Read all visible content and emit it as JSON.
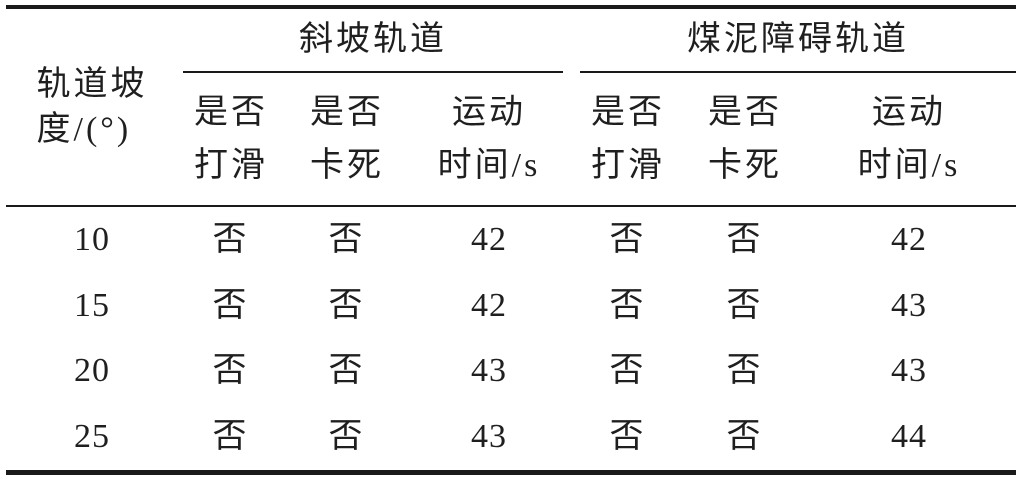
{
  "table": {
    "stub_header": {
      "line1": "轨道坡",
      "line2": "度/(°)"
    },
    "groups": [
      {
        "title": "斜坡轨道",
        "columns": [
          {
            "line1": "是否",
            "line2": "打滑"
          },
          {
            "line1": "是否",
            "line2": "卡死"
          },
          {
            "line1": "运动",
            "line2": "时间/s"
          }
        ]
      },
      {
        "title": "煤泥障碍轨道",
        "columns": [
          {
            "line1": "是否",
            "line2": "打滑"
          },
          {
            "line1": "是否",
            "line2": "卡死"
          },
          {
            "line1": "运动",
            "line2": "时间/s"
          }
        ]
      }
    ],
    "rows": [
      {
        "slope": "10",
        "cells": [
          "否",
          "否",
          "42",
          "否",
          "否",
          "42"
        ]
      },
      {
        "slope": "15",
        "cells": [
          "否",
          "否",
          "42",
          "否",
          "否",
          "43"
        ]
      },
      {
        "slope": "20",
        "cells": [
          "否",
          "否",
          "43",
          "否",
          "否",
          "43"
        ]
      },
      {
        "slope": "25",
        "cells": [
          "否",
          "否",
          "43",
          "否",
          "否",
          "44"
        ]
      }
    ],
    "colors": {
      "rule": "#1a1a1a",
      "text": "#1f1f1f",
      "background": "#ffffff"
    }
  }
}
